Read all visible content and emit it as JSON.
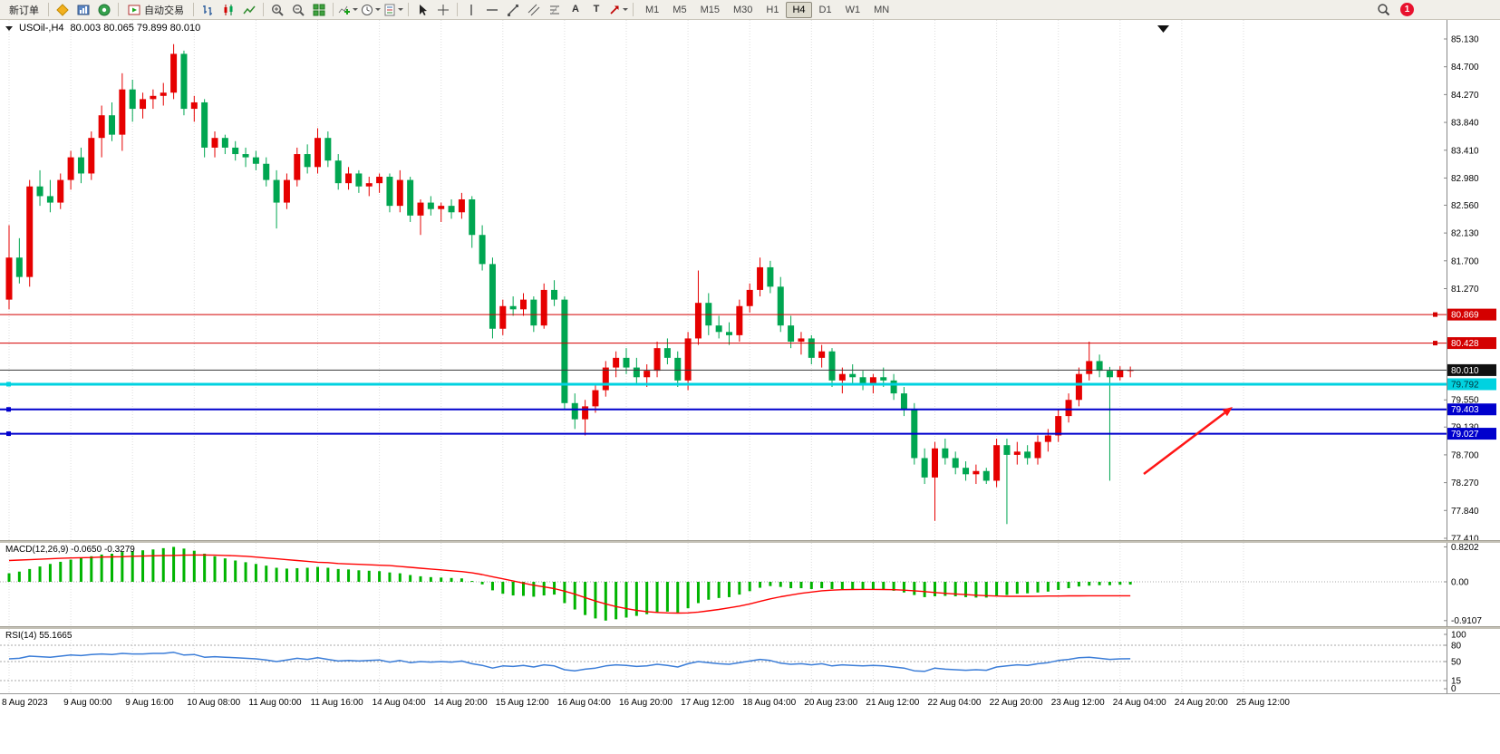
{
  "toolbar": {
    "new_order_label": "新订单",
    "auto_trading_label": "自动交易",
    "text_tool_label": "A",
    "label_tool_label": "T",
    "timeframes": [
      "M1",
      "M5",
      "M15",
      "M30",
      "H1",
      "H4",
      "D1",
      "W1",
      "MN"
    ],
    "active_timeframe": "H4",
    "notification_count": "1",
    "notification_badge_color": "#e8112d"
  },
  "chart_header": {
    "symbol_label": "USOil-,H4",
    "ohlc": "80.003 80.065 79.899 80.010"
  },
  "chart_data": {
    "type": "candlestick",
    "title": "USOil- H4",
    "ylim": [
      77.41,
      85.13
    ],
    "grid": "dotted-vertical",
    "bull_color": "#e60000",
    "bear_color": "#00a651",
    "price_axis_ticks": [
      "85.130",
      "84.700",
      "84.270",
      "83.840",
      "83.410",
      "82.980",
      "82.560",
      "82.130",
      "81.700",
      "81.270",
      "79.550",
      "79.130",
      "78.700",
      "78.270",
      "77.840",
      "77.410"
    ],
    "x_labels": [
      "8 Aug 2023",
      "9 Aug 00:00",
      "9 Aug 16:00",
      "10 Aug 08:00",
      "11 Aug 00:00",
      "11 Aug 16:00",
      "14 Aug 04:00",
      "14 Aug 20:00",
      "15 Aug 12:00",
      "16 Aug 04:00",
      "16 Aug 20:00",
      "17 Aug 12:00",
      "18 Aug 04:00",
      "20 Aug 23:00",
      "21 Aug 12:00",
      "22 Aug 04:00",
      "22 Aug 20:00",
      "23 Aug 12:00",
      "24 Aug 04:00",
      "24 Aug 20:00",
      "25 Aug 12:00"
    ],
    "x_label_step": 6,
    "candles": [
      [
        81.1,
        82.25,
        80.95,
        81.75
      ],
      [
        81.75,
        82.05,
        81.35,
        81.45
      ],
      [
        81.45,
        82.95,
        81.3,
        82.85
      ],
      [
        82.85,
        83.1,
        82.55,
        82.7
      ],
      [
        82.7,
        82.95,
        82.45,
        82.6
      ],
      [
        82.6,
        83.05,
        82.5,
        82.95
      ],
      [
        82.95,
        83.4,
        82.8,
        83.3
      ],
      [
        83.3,
        83.45,
        82.9,
        83.05
      ],
      [
        83.05,
        83.7,
        82.95,
        83.6
      ],
      [
        83.6,
        84.1,
        83.3,
        83.95
      ],
      [
        83.95,
        84.15,
        83.55,
        83.65
      ],
      [
        83.65,
        84.6,
        83.4,
        84.35
      ],
      [
        84.35,
        84.5,
        83.85,
        84.05
      ],
      [
        84.05,
        84.3,
        83.9,
        84.2
      ],
      [
        84.2,
        84.35,
        84.05,
        84.25
      ],
      [
        84.25,
        84.45,
        84.1,
        84.3
      ],
      [
        84.3,
        85.05,
        84.2,
        84.9
      ],
      [
        84.9,
        84.95,
        83.95,
        84.05
      ],
      [
        84.05,
        84.25,
        83.85,
        84.15
      ],
      [
        84.15,
        84.2,
        83.3,
        83.45
      ],
      [
        83.45,
        83.7,
        83.3,
        83.6
      ],
      [
        83.6,
        83.65,
        83.35,
        83.45
      ],
      [
        83.45,
        83.55,
        83.25,
        83.35
      ],
      [
        83.35,
        83.45,
        83.15,
        83.3
      ],
      [
        83.3,
        83.4,
        83.1,
        83.2
      ],
      [
        83.2,
        83.3,
        82.85,
        82.95
      ],
      [
        82.95,
        83.1,
        82.2,
        82.6
      ],
      [
        82.6,
        83.05,
        82.5,
        82.95
      ],
      [
        82.95,
        83.45,
        82.85,
        83.35
      ],
      [
        83.35,
        83.5,
        83.05,
        83.15
      ],
      [
        83.15,
        83.75,
        83.05,
        83.6
      ],
      [
        83.6,
        83.7,
        83.15,
        83.25
      ],
      [
        83.25,
        83.35,
        82.8,
        82.9
      ],
      [
        82.9,
        83.15,
        82.8,
        83.05
      ],
      [
        83.05,
        83.1,
        82.75,
        82.85
      ],
      [
        82.85,
        83.0,
        82.7,
        82.9
      ],
      [
        82.9,
        83.05,
        82.75,
        83.0
      ],
      [
        83.0,
        83.05,
        82.45,
        82.55
      ],
      [
        82.55,
        83.1,
        82.45,
        82.95
      ],
      [
        82.95,
        83.0,
        82.3,
        82.4
      ],
      [
        82.4,
        82.65,
        82.1,
        82.6
      ],
      [
        82.6,
        82.7,
        82.4,
        82.5
      ],
      [
        82.5,
        82.6,
        82.3,
        82.55
      ],
      [
        82.55,
        82.65,
        82.35,
        82.45
      ],
      [
        82.45,
        82.75,
        82.35,
        82.65
      ],
      [
        82.65,
        82.7,
        81.9,
        82.1
      ],
      [
        82.1,
        82.25,
        81.55,
        81.65
      ],
      [
        81.65,
        81.75,
        80.5,
        80.65
      ],
      [
        80.65,
        81.1,
        80.55,
        81.0
      ],
      [
        81.0,
        81.15,
        80.85,
        80.95
      ],
      [
        80.95,
        81.2,
        80.85,
        81.1
      ],
      [
        81.1,
        81.15,
        80.6,
        80.7
      ],
      [
        80.7,
        81.35,
        80.65,
        81.25
      ],
      [
        81.25,
        81.4,
        81.0,
        81.1
      ],
      [
        81.1,
        81.15,
        79.4,
        79.5
      ],
      [
        79.5,
        79.65,
        79.1,
        79.25
      ],
      [
        79.25,
        79.55,
        79.0,
        79.45
      ],
      [
        79.45,
        79.8,
        79.35,
        79.7
      ],
      [
        79.7,
        80.15,
        79.6,
        80.05
      ],
      [
        80.05,
        80.3,
        79.9,
        80.2
      ],
      [
        80.2,
        80.35,
        79.95,
        80.05
      ],
      [
        80.05,
        80.2,
        79.8,
        79.9
      ],
      [
        79.9,
        80.1,
        79.75,
        80.0
      ],
      [
        80.0,
        80.45,
        79.9,
        80.35
      ],
      [
        80.35,
        80.5,
        80.1,
        80.2
      ],
      [
        80.2,
        80.3,
        79.75,
        79.85
      ],
      [
        79.85,
        80.6,
        79.7,
        80.5
      ],
      [
        80.5,
        81.55,
        80.4,
        81.05
      ],
      [
        81.05,
        81.2,
        80.55,
        80.7
      ],
      [
        80.7,
        80.85,
        80.5,
        80.6
      ],
      [
        80.6,
        80.75,
        80.4,
        80.55
      ],
      [
        80.55,
        81.1,
        80.45,
        81.0
      ],
      [
        81.0,
        81.35,
        80.9,
        81.25
      ],
      [
        81.25,
        81.75,
        81.15,
        81.6
      ],
      [
        81.6,
        81.7,
        81.2,
        81.3
      ],
      [
        81.3,
        81.45,
        80.6,
        80.7
      ],
      [
        80.7,
        80.85,
        80.35,
        80.45
      ],
      [
        80.45,
        80.6,
        80.25,
        80.5
      ],
      [
        80.5,
        80.55,
        80.1,
        80.2
      ],
      [
        80.2,
        80.4,
        80.05,
        80.3
      ],
      [
        80.3,
        80.35,
        79.75,
        79.85
      ],
      [
        79.85,
        80.05,
        79.65,
        79.95
      ],
      [
        79.95,
        80.1,
        79.8,
        79.9
      ],
      [
        79.9,
        80.0,
        79.7,
        79.8
      ],
      [
        79.8,
        79.95,
        79.65,
        79.9
      ],
      [
        79.9,
        80.05,
        79.75,
        79.85
      ],
      [
        79.85,
        79.95,
        79.55,
        79.65
      ],
      [
        79.65,
        79.75,
        79.3,
        79.4
      ],
      [
        79.4,
        79.5,
        78.55,
        78.65
      ],
      [
        78.65,
        78.8,
        78.25,
        78.35
      ],
      [
        78.35,
        78.9,
        77.68,
        78.8
      ],
      [
        78.8,
        78.95,
        78.55,
        78.65
      ],
      [
        78.65,
        78.75,
        78.4,
        78.5
      ],
      [
        78.5,
        78.6,
        78.3,
        78.4
      ],
      [
        78.4,
        78.55,
        78.25,
        78.45
      ],
      [
        78.45,
        78.5,
        78.25,
        78.3
      ],
      [
        78.3,
        78.95,
        78.2,
        78.85
      ],
      [
        78.85,
        78.95,
        77.63,
        78.7
      ],
      [
        78.7,
        78.9,
        78.55,
        78.75
      ],
      [
        78.75,
        78.85,
        78.55,
        78.65
      ],
      [
        78.65,
        79.0,
        78.55,
        78.9
      ],
      [
        78.9,
        79.1,
        78.75,
        79.0
      ],
      [
        79.0,
        79.4,
        78.9,
        79.3
      ],
      [
        79.3,
        79.65,
        79.2,
        79.55
      ],
      [
        79.55,
        80.05,
        79.45,
        79.95
      ],
      [
        79.95,
        80.45,
        79.85,
        80.15
      ],
      [
        80.15,
        80.25,
        79.9,
        80.0
      ],
      [
        80.0,
        80.06,
        78.3,
        79.9
      ],
      [
        79.9,
        80.07,
        79.85,
        80.01
      ],
      [
        80.003,
        80.065,
        79.899,
        80.01
      ]
    ],
    "hlines": [
      {
        "value": 80.869,
        "label": "80.869",
        "color": "#d40000",
        "width": 1,
        "badge_bg": "#d40000",
        "badge_fg": "#ffffff",
        "handle": "right"
      },
      {
        "value": 80.428,
        "label": "80.428",
        "color": "#d40000",
        "width": 1,
        "badge_bg": "#d40000",
        "badge_fg": "#ffffff",
        "handle": "right"
      },
      {
        "value": 80.01,
        "label": "80.010",
        "color": "#3a3a3a",
        "width": 1,
        "badge_bg": "#111111",
        "badge_fg": "#ffffff",
        "handle": "none"
      },
      {
        "value": 79.792,
        "label": "79.792",
        "color": "#00d2e0",
        "width": 3,
        "badge_bg": "#00d2e0",
        "badge_fg": "#00333a",
        "handle": "left"
      },
      {
        "value": 79.403,
        "label": "79.403",
        "color": "#0000cd",
        "width": 2,
        "badge_bg": "#0000cd",
        "badge_fg": "#ffffff",
        "handle": "left"
      },
      {
        "value": 79.027,
        "label": "79.027",
        "color": "#0000cd",
        "width": 2,
        "badge_bg": "#0000cd",
        "badge_fg": "#ffffff",
        "handle": "left"
      }
    ],
    "arrow_annotation": {
      "tail": [
        1262,
        501
      ],
      "tip": [
        1360,
        427
      ],
      "color": "#ff1515"
    },
    "macd": {
      "title": "MACD(12,26,9) -0.0650 -0.3279",
      "axis_ticks": [
        "0.8202",
        "0.00",
        "-0.9107"
      ],
      "hist_color": "#00b400",
      "signal_color": "#ff0000",
      "histogram": [
        0.2,
        0.24,
        0.3,
        0.36,
        0.42,
        0.47,
        0.52,
        0.56,
        0.6,
        0.64,
        0.66,
        0.7,
        0.72,
        0.74,
        0.76,
        0.79,
        0.82,
        0.78,
        0.73,
        0.66,
        0.6,
        0.55,
        0.5,
        0.46,
        0.42,
        0.38,
        0.33,
        0.31,
        0.32,
        0.33,
        0.35,
        0.33,
        0.3,
        0.29,
        0.27,
        0.26,
        0.25,
        0.22,
        0.2,
        0.16,
        0.13,
        0.11,
        0.1,
        0.09,
        0.08,
        0.02,
        -0.06,
        -0.2,
        -0.28,
        -0.32,
        -0.33,
        -0.35,
        -0.32,
        -0.3,
        -0.5,
        -0.65,
        -0.78,
        -0.86,
        -0.91,
        -0.88,
        -0.84,
        -0.8,
        -0.76,
        -0.72,
        -0.7,
        -0.72,
        -0.62,
        -0.5,
        -0.42,
        -0.38,
        -0.36,
        -0.3,
        -0.22,
        -0.14,
        -0.1,
        -0.12,
        -0.15,
        -0.15,
        -0.17,
        -0.15,
        -0.17,
        -0.17,
        -0.18,
        -0.19,
        -0.18,
        -0.19,
        -0.21,
        -0.25,
        -0.31,
        -0.36,
        -0.34,
        -0.33,
        -0.34,
        -0.36,
        -0.37,
        -0.37,
        -0.34,
        -0.31,
        -0.28,
        -0.27,
        -0.25,
        -0.23,
        -0.19,
        -0.15,
        -0.11,
        -0.09,
        -0.08,
        -0.08,
        -0.07,
        -0.065
      ],
      "signal": [
        0.5,
        0.51,
        0.52,
        0.53,
        0.54,
        0.55,
        0.56,
        0.565,
        0.57,
        0.58,
        0.585,
        0.59,
        0.6,
        0.605,
        0.61,
        0.615,
        0.62,
        0.625,
        0.63,
        0.63,
        0.625,
        0.62,
        0.61,
        0.6,
        0.58,
        0.56,
        0.54,
        0.52,
        0.5,
        0.48,
        0.46,
        0.45,
        0.43,
        0.42,
        0.41,
        0.4,
        0.39,
        0.38,
        0.36,
        0.34,
        0.32,
        0.3,
        0.28,
        0.26,
        0.24,
        0.21,
        0.17,
        0.12,
        0.07,
        0.02,
        -0.03,
        -0.08,
        -0.12,
        -0.16,
        -0.22,
        -0.29,
        -0.37,
        -0.45,
        -0.52,
        -0.58,
        -0.63,
        -0.67,
        -0.7,
        -0.72,
        -0.73,
        -0.735,
        -0.73,
        -0.71,
        -0.68,
        -0.65,
        -0.61,
        -0.57,
        -0.52,
        -0.46,
        -0.4,
        -0.35,
        -0.31,
        -0.27,
        -0.24,
        -0.21,
        -0.195,
        -0.185,
        -0.18,
        -0.178,
        -0.178,
        -0.18,
        -0.185,
        -0.195,
        -0.21,
        -0.23,
        -0.25,
        -0.27,
        -0.285,
        -0.3,
        -0.315,
        -0.325,
        -0.335,
        -0.34,
        -0.34,
        -0.34,
        -0.338,
        -0.335,
        -0.333,
        -0.33,
        -0.33,
        -0.328,
        -0.328,
        -0.328,
        -0.328,
        -0.328
      ]
    },
    "rsi": {
      "title": "RSI(14) 55.1665",
      "axis_ticks": [
        "100",
        "80",
        "50",
        "15",
        "0"
      ],
      "levels": [
        80,
        50,
        15
      ],
      "line_color": "#3b7dd8",
      "values": [
        55,
        56,
        60,
        59,
        58,
        60,
        62,
        61,
        63,
        64,
        63,
        65,
        64,
        64,
        65,
        65,
        67,
        62,
        63,
        58,
        59,
        58,
        57,
        56,
        55,
        53,
        50,
        53,
        56,
        54,
        57,
        54,
        51,
        52,
        51,
        52,
        53,
        49,
        52,
        48,
        50,
        49,
        50,
        49,
        51,
        46,
        43,
        38,
        42,
        41,
        43,
        40,
        44,
        42,
        35,
        33,
        36,
        38,
        42,
        44,
        43,
        41,
        42,
        45,
        43,
        40,
        46,
        50,
        48,
        46,
        45,
        48,
        51,
        54,
        52,
        47,
        45,
        46,
        44,
        46,
        42,
        44,
        43,
        42,
        43,
        42,
        40,
        38,
        33,
        32,
        38,
        36,
        35,
        34,
        35,
        34,
        40,
        42,
        44,
        43,
        46,
        48,
        52,
        54,
        57,
        58,
        56,
        54,
        55,
        55.2
      ]
    }
  }
}
